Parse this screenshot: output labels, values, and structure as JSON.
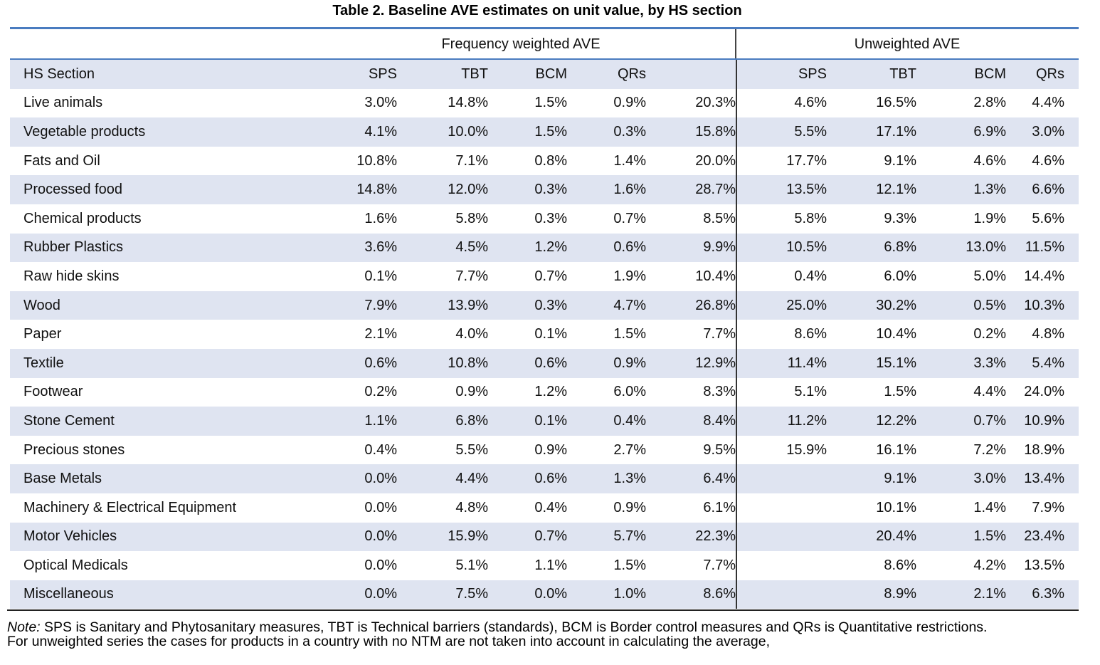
{
  "title": "Table 2. Baseline AVE estimates on unit value, by HS section",
  "group_headers": {
    "frequency": "Frequency weighted AVE",
    "unweighted": "Unweighted AVE"
  },
  "column_headers": [
    "HS Section",
    "SPS",
    "TBT",
    "BCM",
    "QRs",
    "",
    "SPS",
    "TBT",
    "BCM",
    "QRs"
  ],
  "rows": [
    [
      "Live animals",
      "3.0%",
      "14.8%",
      "1.5%",
      "0.9%",
      "20.3%",
      "4.6%",
      "16.5%",
      "2.8%",
      "4.4%"
    ],
    [
      "Vegetable products",
      "4.1%",
      "10.0%",
      "1.5%",
      "0.3%",
      "15.8%",
      "5.5%",
      "17.1%",
      "6.9%",
      "3.0%"
    ],
    [
      "Fats and Oil",
      "10.8%",
      "7.1%",
      "0.8%",
      "1.4%",
      "20.0%",
      "17.7%",
      "9.1%",
      "4.6%",
      "4.6%"
    ],
    [
      "Processed food",
      "14.8%",
      "12.0%",
      "0.3%",
      "1.6%",
      "28.7%",
      "13.5%",
      "12.1%",
      "1.3%",
      "6.6%"
    ],
    [
      "Chemical products",
      "1.6%",
      "5.8%",
      "0.3%",
      "0.7%",
      "8.5%",
      "5.8%",
      "9.3%",
      "1.9%",
      "5.6%"
    ],
    [
      "Rubber Plastics",
      "3.6%",
      "4.5%",
      "1.2%",
      "0.6%",
      "9.9%",
      "10.5%",
      "6.8%",
      "13.0%",
      "11.5%"
    ],
    [
      "Raw hide skins",
      "0.1%",
      "7.7%",
      "0.7%",
      "1.9%",
      "10.4%",
      "0.4%",
      "6.0%",
      "5.0%",
      "14.4%"
    ],
    [
      "Wood",
      "7.9%",
      "13.9%",
      "0.3%",
      "4.7%",
      "26.8%",
      "25.0%",
      "30.2%",
      "0.5%",
      "10.3%"
    ],
    [
      "Paper",
      "2.1%",
      "4.0%",
      "0.1%",
      "1.5%",
      "7.7%",
      "8.6%",
      "10.4%",
      "0.2%",
      "4.8%"
    ],
    [
      "Textile",
      "0.6%",
      "10.8%",
      "0.6%",
      "0.9%",
      "12.9%",
      "11.4%",
      "15.1%",
      "3.3%",
      "5.4%"
    ],
    [
      "Footwear",
      "0.2%",
      "0.9%",
      "1.2%",
      "6.0%",
      "8.3%",
      "5.1%",
      "1.5%",
      "4.4%",
      "24.0%"
    ],
    [
      "Stone Cement",
      "1.1%",
      "6.8%",
      "0.1%",
      "0.4%",
      "8.4%",
      "11.2%",
      "12.2%",
      "0.7%",
      "10.9%"
    ],
    [
      "Precious stones",
      "0.4%",
      "5.5%",
      "0.9%",
      "2.7%",
      "9.5%",
      "15.9%",
      "16.1%",
      "7.2%",
      "18.9%"
    ],
    [
      "Base Metals",
      "0.0%",
      "4.4%",
      "0.6%",
      "1.3%",
      "6.4%",
      "",
      "9.1%",
      "3.0%",
      "13.4%"
    ],
    [
      "Machinery & Electrical Equipment",
      "0.0%",
      "4.8%",
      "0.4%",
      "0.9%",
      "6.1%",
      "",
      "10.1%",
      "1.4%",
      "7.9%"
    ],
    [
      "Motor Vehicles",
      "0.0%",
      "15.9%",
      "0.7%",
      "5.7%",
      "22.3%",
      "",
      "20.4%",
      "1.5%",
      "23.4%"
    ],
    [
      "Optical Medicals",
      "0.0%",
      "5.1%",
      "1.1%",
      "1.5%",
      "7.7%",
      "",
      "8.6%",
      "4.2%",
      "13.5%"
    ],
    [
      "Miscellaneous",
      "0.0%",
      "7.5%",
      "0.0%",
      "1.0%",
      "8.6%",
      "",
      "8.9%",
      "2.1%",
      "6.3%"
    ]
  ],
  "note": {
    "label": "Note:",
    "text": " SPS is Sanitary and Phytosanitary measures, TBT is Technical barriers (standards), BCM is Border control measures and QRs is Quantitative restrictions.",
    "line2": "For unweighted series the cases for products in a country with no NTM are not taken into account in calculating the average,"
  }
}
